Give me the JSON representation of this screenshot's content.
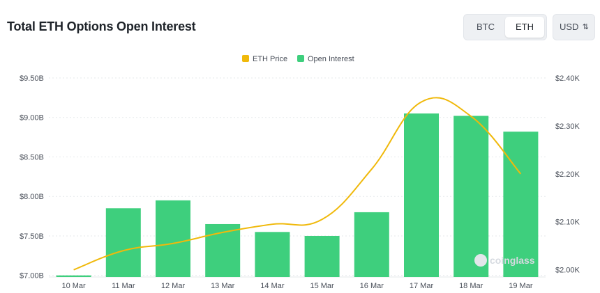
{
  "header": {
    "title": "Total ETH Options Open Interest",
    "toggle": {
      "btc_label": "BTC",
      "eth_label": "ETH",
      "selected": "ETH"
    },
    "currency": {
      "label": "USD",
      "chevron_icon": "up-down-chevron-icon"
    }
  },
  "watermark": "coinglass",
  "colors": {
    "bar": "#3ecf7d",
    "line": "#f0b90b",
    "accent": "#1e2329"
  },
  "chart_data": {
    "type": "bar",
    "categories": [
      "10 Mar",
      "11 Mar",
      "12 Mar",
      "13 Mar",
      "14 Mar",
      "15 Mar",
      "16 Mar",
      "17 Mar",
      "18 Mar",
      "19 Mar"
    ],
    "series": [
      {
        "name": "Open Interest",
        "type": "bar",
        "axis": "left",
        "values": [
          7.0,
          7.85,
          7.95,
          7.65,
          7.55,
          7.5,
          7.8,
          9.05,
          9.02,
          8.82
        ]
      },
      {
        "name": "ETH Price",
        "type": "line",
        "axis": "right",
        "values": [
          2000,
          2040,
          2055,
          2078,
          2095,
          2105,
          2210,
          2350,
          2320,
          2200
        ]
      }
    ],
    "y_left": {
      "ticks": [
        "$9.50B",
        "$9.00B",
        "$8.50B",
        "$8.00B",
        "$7.50B",
        "$7.00B"
      ],
      "range": [
        6.98,
        9.5
      ]
    },
    "y_right": {
      "ticks": [
        "$2.40K",
        "$2.30K",
        "$2.20K",
        "$2.10K",
        "$2.00K"
      ],
      "range": [
        1985,
        2400
      ]
    },
    "legend": {
      "position": "top-center"
    },
    "grid": true
  }
}
